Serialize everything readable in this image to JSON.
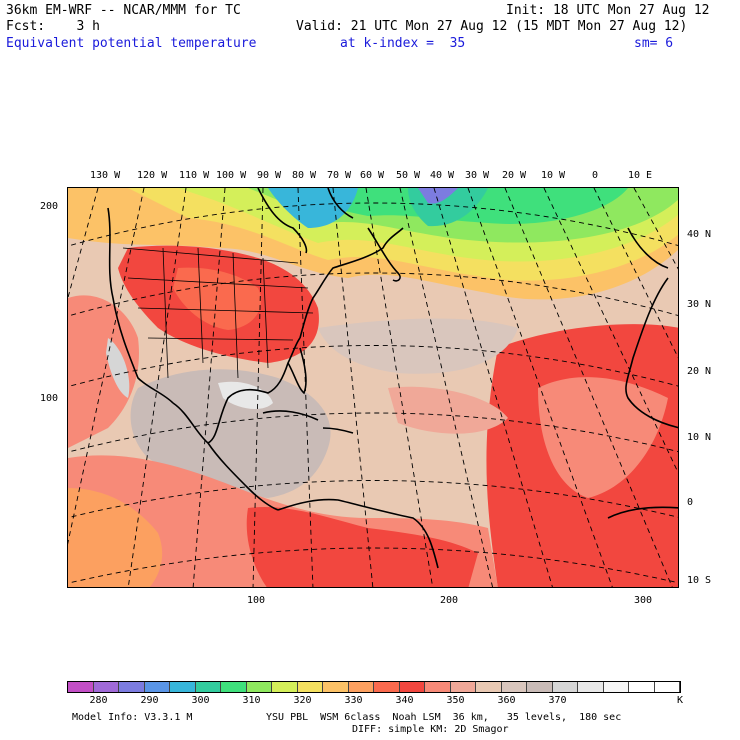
{
  "header": {
    "model": "36km EM-WRF -- NCAR/MMM for TC",
    "init": "Init: 18 UTC Mon 27 Aug 12",
    "fcst": "Fcst:    3 h",
    "valid": "Valid: 21 UTC Mon 27 Aug 12 (15 MDT Mon 27 Aug 12)",
    "field": "Equivalent potential temperature",
    "level": "at k-index =  35",
    "smooth": "sm= 6"
  },
  "top_lon_labels": [
    "130 W",
    "120 W",
    "110 W",
    "100 W",
    "90 W",
    "80 W",
    "70 W",
    "60 W",
    "50 W",
    "40 W",
    "30 W",
    "20 W",
    "10 W",
    "0",
    "10 E"
  ],
  "right_lat_labels": [
    "40 N",
    "30 N",
    "20 N",
    "10 N",
    "0",
    "10 S"
  ],
  "left_axis_labels": [
    "200",
    "100"
  ],
  "bottom_axis_labels": [
    "100",
    "200",
    "300"
  ],
  "colorbar": {
    "colors": [
      "#c34fc6",
      "#a06ad7",
      "#7c7ce0",
      "#5a95e6",
      "#38b6da",
      "#33cc9e",
      "#3fe07c",
      "#8fe85f",
      "#d4ef5a",
      "#f4e060",
      "#fcc267",
      "#fca060",
      "#fa6a4e",
      "#f2473f",
      "#f78a78",
      "#f0a898",
      "#e9c9b3",
      "#d9c6bd",
      "#c9bbb7",
      "#d6d6d6",
      "#e8e8e8",
      "#f6f6f6",
      "#ffffff",
      "#ffffff"
    ],
    "labels": [
      "280",
      "290",
      "300",
      "310",
      "320",
      "330",
      "340",
      "350",
      "360",
      "370"
    ],
    "unit": "K"
  },
  "footer": {
    "line1_left": "Model Info: V3.3.1 M",
    "line1_right": "YSU PBL  WSM 6class  Noah LSM  36 km,   35 levels,  180 sec",
    "line2": "DIFF: simple KM: 2D Smagor"
  }
}
